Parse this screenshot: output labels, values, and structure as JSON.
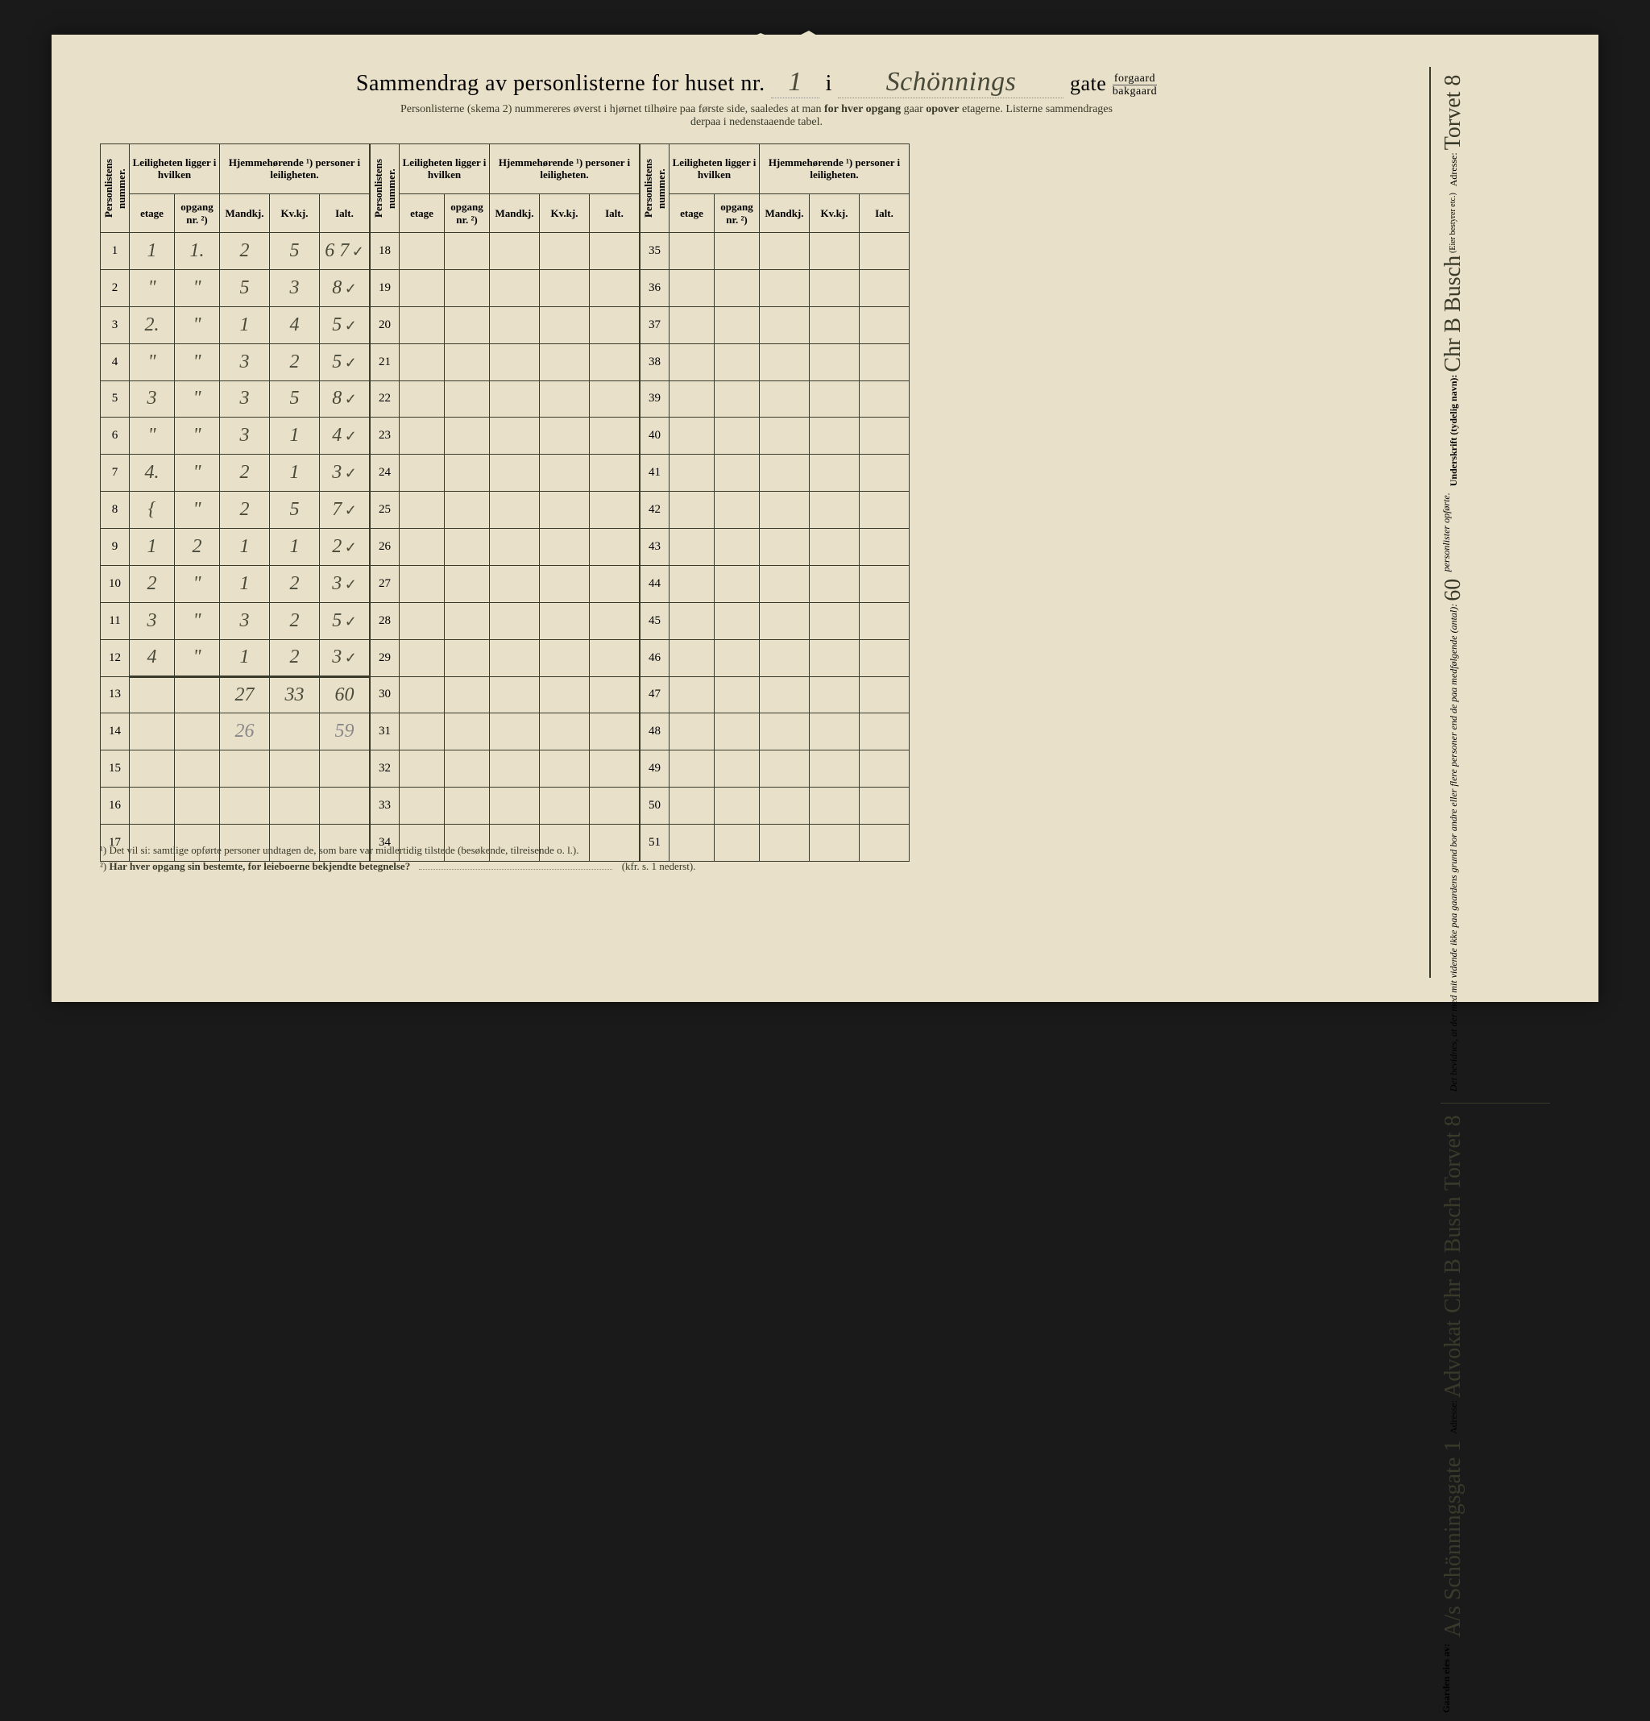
{
  "title": {
    "prefix": "Sammendrag av personlisterne for huset nr.",
    "house_nr": "1",
    "mid": "i",
    "street": "Schönnings",
    "gate": "gate",
    "forgaard": "forgaard",
    "bakgaard": "bakgaard"
  },
  "subtitle": {
    "part1": "Personlisterne (skema 2) nummereres øverst i hjørnet tilhøire paa første side, saaledes at man ",
    "bold1": "for hver opgang",
    "part2": " gaar ",
    "bold2": "opover",
    "part3": " etagerne.  Listerne sammendrages",
    "part4": "derpaa i nedenstaaende tabel."
  },
  "headers": {
    "personlistens_nummer": "Personlistens nummer.",
    "leiligheten": "Leiligheten ligger i hvilken",
    "hjemmehorende": "Hjemmehørende ¹) personer i leiligheten.",
    "etage": "etage",
    "opgang": "opgang nr. ²)",
    "mandkj": "Mandkj.",
    "kvkj": "Kv.kj.",
    "ialt": "Ialt."
  },
  "table1": {
    "row_nums": [
      1,
      2,
      3,
      4,
      5,
      6,
      7,
      8,
      9,
      10,
      11,
      12,
      13,
      14,
      15,
      16,
      17
    ],
    "rows": [
      {
        "etage": "1",
        "opgang": "1.",
        "m": "2",
        "k": "5",
        "i": "6 7",
        "check": true
      },
      {
        "etage": "\"",
        "opgang": "\"",
        "m": "5",
        "k": "3",
        "i": "8",
        "check": true
      },
      {
        "etage": "2.",
        "opgang": "\"",
        "m": "1",
        "k": "4",
        "i": "5",
        "check": true
      },
      {
        "etage": "\"",
        "opgang": "\"",
        "m": "3",
        "k": "2",
        "i": "5",
        "check": true
      },
      {
        "etage": "3",
        "opgang": "\"",
        "m": "3",
        "k": "5",
        "i": "8",
        "check": true
      },
      {
        "etage": "\"",
        "opgang": "\"",
        "m": "3",
        "k": "1",
        "i": "4",
        "check": true
      },
      {
        "etage": "4.",
        "opgang": "\"",
        "m": "2",
        "k": "1",
        "i": "3",
        "check": true
      },
      {
        "etage": "{",
        "opgang": "\"",
        "m": "2",
        "k": "5",
        "i": "7",
        "check": true
      },
      {
        "etage": "1",
        "opgang": "2",
        "m": "1",
        "k": "1",
        "i": "2",
        "check": true
      },
      {
        "etage": "2",
        "opgang": "\"",
        "m": "1",
        "k": "2",
        "i": "3",
        "check": true
      },
      {
        "etage": "3",
        "opgang": "\"",
        "m": "3",
        "k": "2",
        "i": "5",
        "check": true
      },
      {
        "etage": "4",
        "opgang": "\"",
        "m": "1",
        "k": "2",
        "i": "3",
        "check": true
      },
      {
        "etage": "",
        "opgang": "",
        "m": "27",
        "k": "33",
        "i": "60",
        "check": false,
        "sum": true
      },
      {
        "etage": "",
        "opgang": "",
        "m": "26",
        "k": "",
        "i": "59",
        "check": false,
        "pencil": true
      },
      {
        "etage": "",
        "opgang": "",
        "m": "",
        "k": "",
        "i": "",
        "check": false
      },
      {
        "etage": "",
        "opgang": "",
        "m": "",
        "k": "",
        "i": "",
        "check": false
      },
      {
        "etage": "",
        "opgang": "",
        "m": "",
        "k": "",
        "i": "",
        "check": false
      }
    ]
  },
  "table2": {
    "row_nums": [
      18,
      19,
      20,
      21,
      22,
      23,
      24,
      25,
      26,
      27,
      28,
      29,
      30,
      31,
      32,
      33,
      34
    ]
  },
  "table3": {
    "row_nums": [
      35,
      36,
      37,
      38,
      39,
      40,
      41,
      42,
      43,
      44,
      45,
      46,
      47,
      48,
      49,
      50,
      51
    ]
  },
  "footnotes": {
    "fn1": "¹)  Det vil si: samtlige opførte personer undtagen de, som bare var midlertidig tilstede (besøkende, tilreisende o. l.).",
    "fn2_label": "²)",
    "fn2_q": "Har hver opgang sin bestemte, for leieboerne bekjendte betegnelse?",
    "fn2_tail": "(kfr. s. 1 nederst)."
  },
  "right": {
    "bevidnes": "Det bevidnes, at der med mit vidende ikke paa gaardens grund bor andre eller flere personer end de paa medfølgende (antal):",
    "antal": "60",
    "personlister": "personlister opførte.",
    "underskrift_label": "Underskrift (tydelig navn):",
    "underskrift": "Chr B Busch",
    "bestyrer": "(Eier bestyrer etc.)",
    "adresse_label": "Adresse:",
    "adresse": "Torvet 8",
    "gaarden_eies": "Gaarden eies av:",
    "eier": "A/s Schönningsgate 1",
    "adresse2_label": "Adresse:",
    "eier2": "Advokat",
    "eier3": "Chr B Busch",
    "eier4": "Torvet 8"
  },
  "styling": {
    "paper_color": "#e8e0c8",
    "ink_color": "#3a3a2a",
    "handwriting_color": "#4a4a3a",
    "pencil_color": "#888888",
    "border_color": "#3a3a2a"
  }
}
